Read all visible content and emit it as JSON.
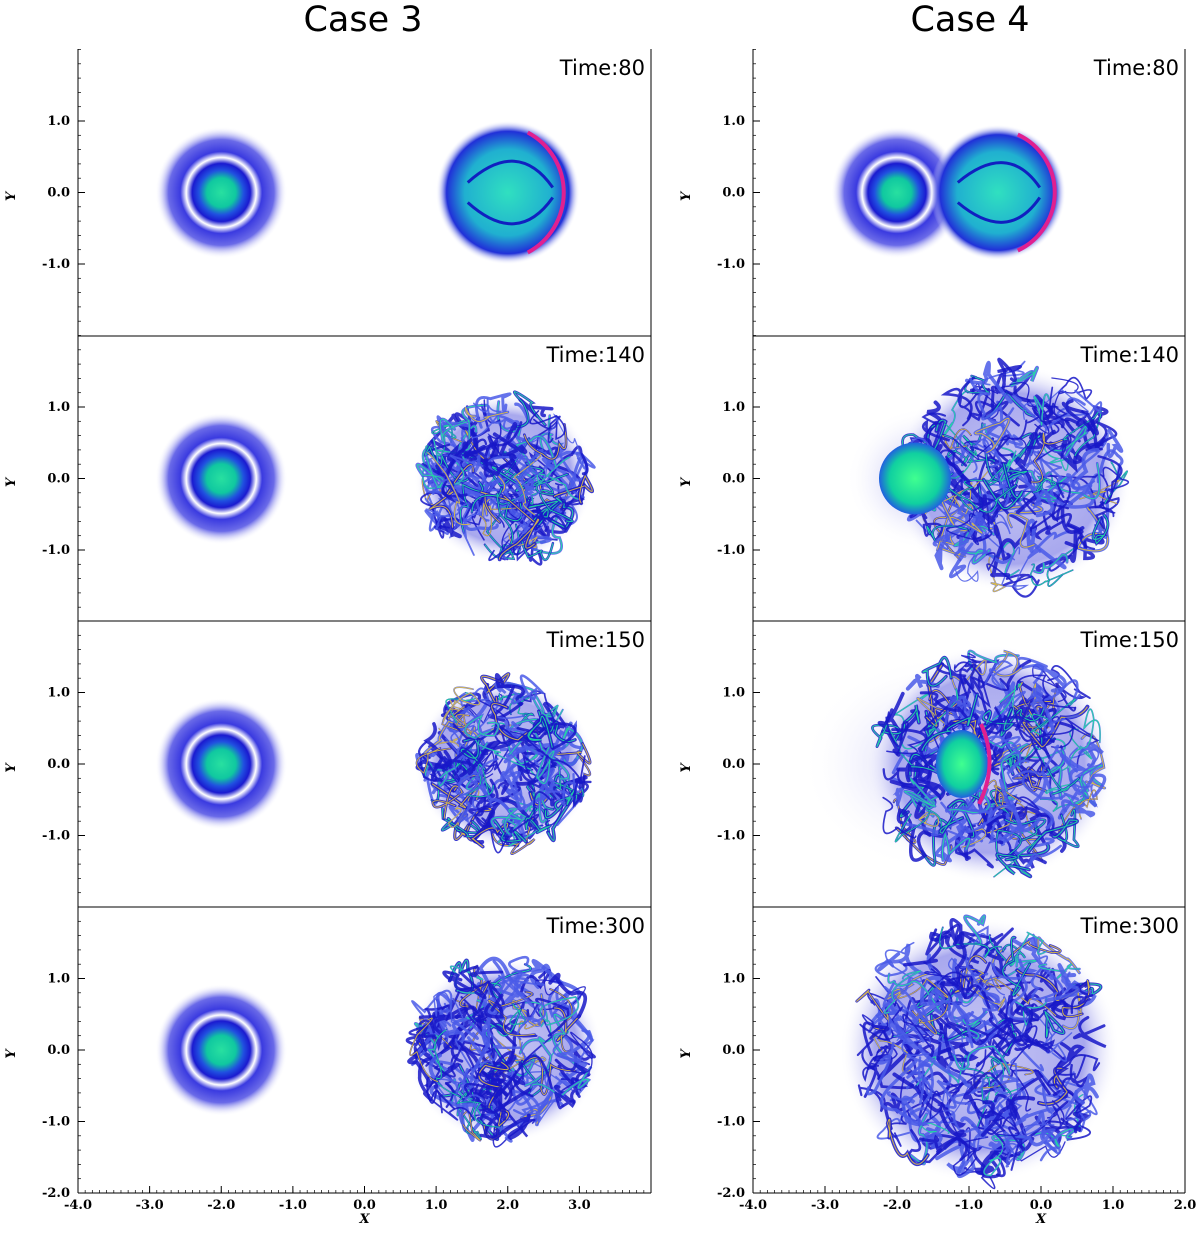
{
  "columns": [
    {
      "title": "Case 3",
      "x_ticks": [
        "-4.0",
        "-3.0",
        "-2.0",
        "-1.0",
        "0.0",
        "1.0",
        "2.0",
        "3.0"
      ],
      "panels": [
        {
          "time_label": "Time:80",
          "stage": "approach"
        },
        {
          "time_label": "Time:140",
          "stage": "turbulent"
        },
        {
          "time_label": "Time:150",
          "stage": "turbulent"
        },
        {
          "time_label": "Time:300",
          "stage": "turbulent"
        }
      ]
    },
    {
      "title": "Case 4",
      "x_ticks": [
        "-4.0",
        "-3.0",
        "-2.0",
        "-1.0",
        "0.0",
        "1.0",
        "2.0"
      ],
      "panels": [
        {
          "time_label": "Time:80",
          "stage": "approach"
        },
        {
          "time_label": "Time:140",
          "stage": "contact"
        },
        {
          "time_label": "Time:150",
          "stage": "merge"
        },
        {
          "time_label": "Time:300",
          "stage": "turbulent"
        }
      ]
    }
  ],
  "y_ticks": [
    "1.0",
    "0.0",
    "-1.0"
  ],
  "bottom_y_tick": "-2.0",
  "x_axis_label": "X",
  "y_axis_label": "Y",
  "colors": {
    "halo": "#3a3ad8",
    "core": "#18d890",
    "filament": "#2020d0",
    "hot": "#e02090"
  }
}
